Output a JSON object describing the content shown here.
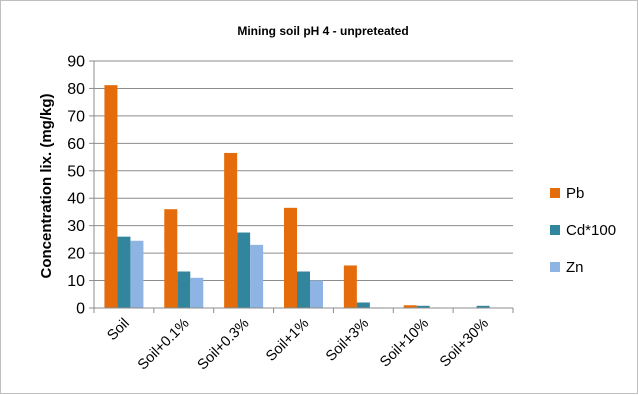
{
  "chart_data": {
    "type": "bar",
    "title": "Mining soil pH 4 - unpreteated",
    "xlabel": "",
    "ylabel": "Concentration lix. (mg/kg)",
    "ylim": [
      0,
      90
    ],
    "yticks": [
      0,
      10,
      20,
      30,
      40,
      50,
      60,
      70,
      80,
      90
    ],
    "grid": true,
    "legend_position": "right",
    "categories": [
      "Soil",
      "Soil+0.1%",
      "Soil+0.3%",
      "Soil+1%",
      "Soil+3%",
      "Soil+10%",
      "Soil+30%"
    ],
    "series": [
      {
        "name": "Pb",
        "color": "#E46C0A",
        "values": [
          81.2,
          36.0,
          56.5,
          36.5,
          15.5,
          1.0,
          0.0
        ]
      },
      {
        "name": "Cd*100",
        "color": "#31859C",
        "values": [
          26.0,
          13.3,
          27.5,
          13.3,
          2.0,
          0.8,
          0.8
        ]
      },
      {
        "name": "Zn",
        "color": "#8EB4E3",
        "values": [
          24.5,
          11.0,
          23.0,
          10.0,
          0.2,
          0.2,
          0.0
        ]
      }
    ]
  }
}
